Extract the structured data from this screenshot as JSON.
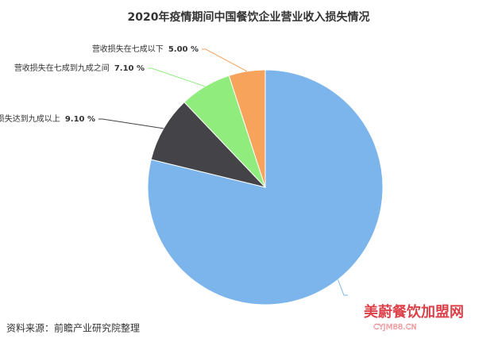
{
  "chart_data": {
    "type": "pie",
    "title": "2020年疫情期间中国餐饮企业营业收入损失情况",
    "categories": [
      null,
      "营收损失达到九成以上",
      "营收损失在七成到九成之间",
      "营收损失在七成以下"
    ],
    "values": [
      78.8,
      9.1,
      7.1,
      5.0
    ],
    "value_labels": [
      null,
      "9.10 %",
      "7.10 %",
      "5.00 %"
    ],
    "colors": [
      "#7cb5ec",
      "#434348",
      "#90ed7d",
      "#f7a35c"
    ],
    "source": "资料来源：前瞻产业研究院整理",
    "watermark": {
      "name": "美蔚餐饮加盟网",
      "url": "CYJM88.CN"
    }
  }
}
